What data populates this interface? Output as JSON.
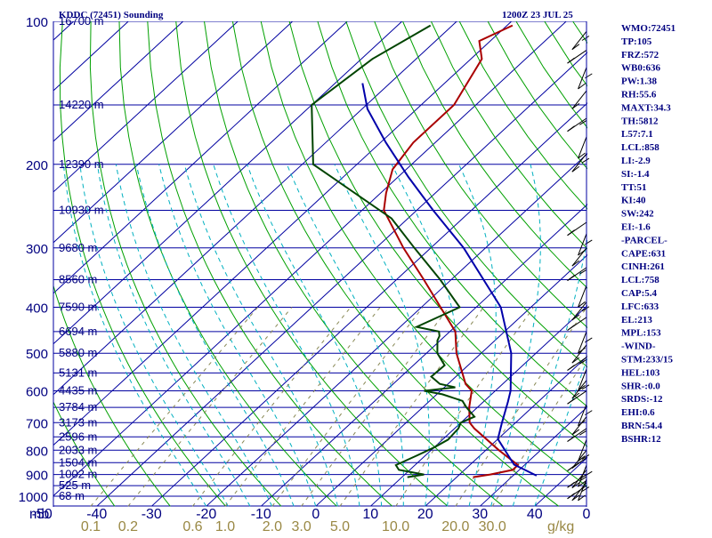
{
  "header": {
    "station": "KDDC (72451) Sounding",
    "time": "1200Z 23 JUL 25"
  },
  "axes": {
    "pressure_unit": "mb",
    "mixing_ratio_unit": "g/kg",
    "temperature_labels": [
      "-50",
      "-40",
      "-30",
      "-20",
      "-10",
      "0",
      "10",
      "20",
      "30",
      "40",
      "0"
    ],
    "mixing_ratio_labels": [
      "0.1",
      "0.2",
      "0.6",
      "1.0",
      "2.0",
      "3.0",
      "5.0",
      "10.0",
      "20.0",
      "30.0"
    ]
  },
  "indices": [
    "WMO:72451",
    "TP:105",
    "FRZ:572",
    "WB0:636",
    "PW:1.38",
    "RH:55.6",
    "MAXT:34.3",
    "TH:5812",
    "L57:7.1",
    "LCL:858",
    "LI:-2.9",
    "SI:-1.4",
    "TT:51",
    "KI:40",
    "SW:242",
    "EI:-1.6",
    "-PARCEL-",
    "CAPE:631",
    "CINH:261",
    "LCL:758",
    "CAP:5.4",
    "LFC:633",
    "EL:213",
    "MPL:153",
    "-WIND-",
    "STM:233/15",
    "HEL:103",
    "SHR-:0.0",
    "SRDS:-12",
    "EHI:0.6",
    "BRN:54.4",
    "BSHR:12"
  ],
  "colors": {
    "isobar": "#0000a0",
    "isotherm": "#0000a0",
    "dry_adiabat": "#00a000",
    "moist_adiabat": "#00b0c0",
    "mixing_ratio": "#888855",
    "temperature": "#aa0000",
    "dewpoint": "#004400",
    "parcel": "#0000aa",
    "text": "#000080"
  },
  "chart_data": {
    "type": "line",
    "title": "KDDC (72451) Sounding",
    "subtitle": "1200Z 23 JUL 25",
    "xlabel": "",
    "ylabel": "mb",
    "ylim": [
      1050,
      100
    ],
    "xlim": [
      -50,
      50
    ],
    "y_scale": "log",
    "pressure_levels": [
      {
        "p": 100,
        "label": "100",
        "height": "16700 m"
      },
      {
        "p": 150,
        "label": "",
        "height": "14220 m"
      },
      {
        "p": 200,
        "label": "200",
        "height": "12390 m"
      },
      {
        "p": 250,
        "label": "",
        "height": "10930 m"
      },
      {
        "p": 300,
        "label": "300",
        "height": "9680 m"
      },
      {
        "p": 350,
        "label": "",
        "height": "8560 m"
      },
      {
        "p": 400,
        "label": "400",
        "height": "7590 m"
      },
      {
        "p": 450,
        "label": "",
        "height": "6694 m"
      },
      {
        "p": 500,
        "label": "500",
        "height": "5880 m"
      },
      {
        "p": 550,
        "label": "",
        "height": "5131 m"
      },
      {
        "p": 600,
        "label": "600",
        "height": "4435 m"
      },
      {
        "p": 650,
        "label": "",
        "height": "3784 m"
      },
      {
        "p": 700,
        "label": "700",
        "height": "3173 m"
      },
      {
        "p": 750,
        "label": "",
        "height": "2596 m"
      },
      {
        "p": 800,
        "label": "800",
        "height": "2033 m"
      },
      {
        "p": 850,
        "label": "",
        "height": "1504 m"
      },
      {
        "p": 900,
        "label": "900",
        "height": "1002 m"
      },
      {
        "p": 950,
        "label": "",
        "height": "525 m"
      },
      {
        "p": 1000,
        "label": "1000",
        "height": "68 m"
      }
    ],
    "mixing_ratio_lines": [
      0.1,
      0.2,
      0.6,
      1.0,
      2.0,
      3.0,
      5.0,
      10.0,
      20.0,
      30.0
    ],
    "series": [
      {
        "name": "Temperature",
        "points": [
          [
            912,
            23
          ],
          [
            900,
            25.6
          ],
          [
            880,
            28.8
          ],
          [
            860,
            28.8
          ],
          [
            800,
            22.4
          ],
          [
            720,
            13.6
          ],
          [
            700,
            11.6
          ],
          [
            650,
            8.5
          ],
          [
            600,
            5.7
          ],
          [
            580,
            3.2
          ],
          [
            500,
            -4.5
          ],
          [
            450,
            -9
          ],
          [
            400,
            -16.5
          ],
          [
            350,
            -25
          ],
          [
            300,
            -35
          ],
          [
            250,
            -46
          ],
          [
            230,
            -49
          ],
          [
            205,
            -52.5
          ],
          [
            180,
            -54
          ],
          [
            150,
            -54
          ],
          [
            120,
            -58
          ],
          [
            110,
            -62
          ],
          [
            102,
            -59
          ]
        ]
      },
      {
        "name": "Dewpoint",
        "points": [
          [
            912,
            11
          ],
          [
            900,
            13.5
          ],
          [
            880,
            8
          ],
          [
            860,
            6.5
          ],
          [
            820,
            8.5
          ],
          [
            790,
            10
          ],
          [
            760,
            11
          ],
          [
            720,
            10.7
          ],
          [
            700,
            10
          ],
          [
            680,
            11.3
          ],
          [
            650,
            8
          ],
          [
            630,
            6
          ],
          [
            610,
            1
          ],
          [
            600,
            -3
          ],
          [
            590,
            2
          ],
          [
            580,
            -1.5
          ],
          [
            560,
            -4.5
          ],
          [
            530,
            -4.3
          ],
          [
            500,
            -8
          ],
          [
            470,
            -10.5
          ],
          [
            460,
            -11
          ],
          [
            450,
            -12
          ],
          [
            440,
            -17
          ],
          [
            400,
            -13
          ],
          [
            350,
            -22
          ],
          [
            300,
            -33
          ],
          [
            260,
            -43
          ],
          [
            200,
            -68
          ],
          [
            150,
            -80
          ],
          [
            120,
            -78
          ],
          [
            102,
            -74
          ]
        ]
      },
      {
        "name": "Parcel",
        "points": [
          [
            905,
            34.3
          ],
          [
            880,
            31
          ],
          [
            858,
            28
          ],
          [
            758,
            20
          ],
          [
            700,
            17.5
          ],
          [
            633,
            14.5
          ],
          [
            600,
            12.8
          ],
          [
            500,
            5.5
          ],
          [
            400,
            -5.5
          ],
          [
            300,
            -24
          ],
          [
            250,
            -37
          ],
          [
            213,
            -48
          ],
          [
            180,
            -59
          ],
          [
            153,
            -69
          ],
          [
            135,
            -75
          ]
        ]
      }
    ]
  }
}
